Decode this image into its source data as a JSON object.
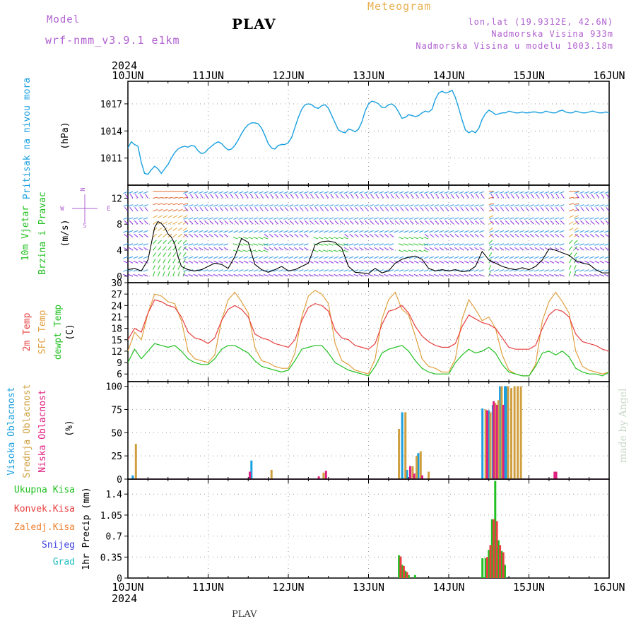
{
  "header": {
    "model_label": "Model",
    "model_name": "wrf-nmm_v3.9.1 e1km",
    "station": "PLAV",
    "product": "Meteogram",
    "lonlat": "lon,lat (19.9312E, 42.6N)",
    "elevation": "Nadmorska Visina 933m",
    "model_elevation": "Nadmorska Visina u modelu 1003.18m"
  },
  "time_axis": {
    "year": "2024",
    "day_labels": [
      "10JUN",
      "11JUN",
      "12JUN",
      "13JUN",
      "14JUN",
      "15JUN",
      "16JUN"
    ]
  },
  "footer": {
    "station": "PLAV",
    "credit": "made by Angel"
  },
  "colors": {
    "pressure": "#1aa0e0",
    "wind_green": "#20c020",
    "wind_purple": "#8020e0",
    "temp2m": "#e84040",
    "sfc_temp": "#e0a040",
    "dewpt": "#20c020",
    "high_cloud": "#1aa0e0",
    "mid_cloud": "#d0a040",
    "low_cloud": "#e02080",
    "total_precip": "#20c020",
    "conv_precip": "#e84040",
    "frozen": "#f08030",
    "snow": "#4040e0",
    "hail": "#20c0c0"
  },
  "chart_data": [
    {
      "type": "line",
      "panel": "pressure",
      "ylabel_1": "Pritisak na nivou mora",
      "ylabel_2": "(hPa)",
      "ylim": [
        1008,
        1019.5
      ],
      "yticks": [
        "1011",
        "1014",
        "1017"
      ],
      "grid": true,
      "x_days": [
        0,
        0.042,
        0.083,
        0.125,
        0.167,
        0.208,
        0.25,
        0.292,
        0.333,
        0.375,
        0.417,
        0.458,
        0.5,
        0.542,
        0.583,
        0.625,
        0.667,
        0.708,
        0.75,
        0.792,
        0.833,
        0.875,
        0.917,
        0.958,
        1.0,
        1.042,
        1.083,
        1.125,
        1.167,
        1.208,
        1.25,
        1.292,
        1.333,
        1.375,
        1.417,
        1.458,
        1.5,
        1.542,
        1.583,
        1.625,
        1.667,
        1.708,
        1.75,
        1.792,
        1.833,
        1.875,
        1.917,
        1.958,
        2.0,
        2.042,
        2.083,
        2.125,
        2.167,
        2.208,
        2.25,
        2.292,
        2.333,
        2.375,
        2.417,
        2.458,
        2.5,
        2.542,
        2.583,
        2.625,
        2.667,
        2.708,
        2.75,
        2.792,
        2.833,
        2.875,
        2.917,
        2.958,
        3.0,
        3.042,
        3.083,
        3.125,
        3.167,
        3.208,
        3.25,
        3.292,
        3.333,
        3.375,
        3.417,
        3.458,
        3.5,
        3.542,
        3.583,
        3.625,
        3.667,
        3.708,
        3.75,
        3.792,
        3.833,
        3.875,
        3.917,
        3.958,
        4.0,
        4.042,
        4.083,
        4.125,
        4.167,
        4.208,
        4.25,
        4.292,
        4.333,
        4.375,
        4.417,
        4.458,
        4.5,
        4.542,
        4.583,
        4.625,
        4.667,
        4.708,
        4.75,
        4.792,
        4.833,
        4.875,
        4.917,
        4.958,
        5.0,
        5.042,
        5.083,
        5.125,
        5.167,
        5.208,
        5.25,
        5.292,
        5.333,
        5.375,
        5.417,
        5.458,
        5.5,
        5.542,
        5.583,
        5.625,
        5.667,
        5.708,
        5.75,
        5.792,
        5.833,
        5.875,
        5.917,
        5.958,
        6.0
      ],
      "series": [
        {
          "values": [
            1012.1,
            1012.8,
            1012.5,
            1012.3,
            1010.5,
            1009.3,
            1009.2,
            1009.7,
            1010.1,
            1009.8,
            1009.3,
            1009.8,
            1010.3,
            1011.0,
            1011.6,
            1012.0,
            1012.2,
            1012.3,
            1012.2,
            1012.4,
            1012.3,
            1011.8,
            1011.5,
            1011.6,
            1012.0,
            1012.3,
            1012.6,
            1012.8,
            1012.6,
            1012.2,
            1011.9,
            1012.0,
            1012.4,
            1013.0,
            1013.7,
            1014.3,
            1014.7,
            1014.9,
            1014.9,
            1014.8,
            1014.3,
            1013.5,
            1012.6,
            1012.1,
            1012.0,
            1012.4,
            1012.5,
            1012.5,
            1012.7,
            1013.3,
            1014.4,
            1015.5,
            1016.4,
            1016.9,
            1017.0,
            1016.9,
            1016.6,
            1016.5,
            1016.8,
            1016.9,
            1016.5,
            1015.7,
            1014.9,
            1014.1,
            1013.9,
            1013.8,
            1014.2,
            1014.1,
            1013.9,
            1014.2,
            1015.0,
            1016.2,
            1017.0,
            1017.3,
            1017.2,
            1017.0,
            1016.6,
            1016.6,
            1016.9,
            1017.0,
            1016.7,
            1016.1,
            1015.4,
            1015.5,
            1015.8,
            1015.7,
            1015.6,
            1015.7,
            1016.0,
            1016.2,
            1016.1,
            1016.4,
            1017.5,
            1018.2,
            1018.4,
            1018.2,
            1018.3,
            1018.5,
            1017.7,
            1016.5,
            1015.2,
            1014.1,
            1013.8,
            1014.0,
            1013.8,
            1014.3,
            1015.3,
            1015.9,
            1016.3,
            1016.1,
            1015.8,
            1015.9,
            1016.0,
            1016.0,
            1016.2,
            1016.1,
            1016.0,
            1016.0,
            1016.1,
            1016.0,
            1016.0,
            1016.1,
            1016.1,
            1016.0,
            1016.0,
            1016.2,
            1016.1,
            1016.0,
            1016.0,
            1016.2,
            1016.3,
            1016.1,
            1016.0,
            1016.0,
            1016.2,
            1016.1,
            1016.0,
            1016.0,
            1016.1,
            1016.2,
            1016.1,
            1016.0,
            1016.0,
            1016.1,
            1016.0
          ]
        }
      ]
    },
    {
      "type": "line",
      "panel": "wind",
      "ylabel_1": "10m Vjetar",
      "ylabel_2": "Brzina i Pravac",
      "ylabel_3": "(m/s)",
      "compass": {
        "n": "N",
        "e": "E",
        "w": "W",
        "s": "S"
      },
      "ylim": [
        -1,
        14
      ],
      "yticks": [
        "0",
        "4",
        "8",
        "12"
      ],
      "grid": true,
      "x_days": [
        0,
        0.083,
        0.167,
        0.25,
        0.333,
        0.375,
        0.417,
        0.458,
        0.5,
        0.542,
        0.583,
        0.625,
        0.667,
        0.75,
        0.833,
        0.917,
        1.0,
        1.083,
        1.167,
        1.25,
        1.333,
        1.417,
        1.5,
        1.583,
        1.667,
        1.75,
        1.833,
        1.917,
        2.0,
        2.083,
        2.167,
        2.25,
        2.333,
        2.417,
        2.5,
        2.583,
        2.667,
        2.75,
        2.833,
        2.917,
        3.0,
        3.083,
        3.167,
        3.25,
        3.333,
        3.417,
        3.5,
        3.583,
        3.667,
        3.75,
        3.833,
        3.917,
        4.0,
        4.083,
        4.167,
        4.25,
        4.333,
        4.417,
        4.5,
        4.583,
        4.667,
        4.75,
        4.833,
        4.917,
        5.0,
        5.083,
        5.167,
        5.25,
        5.333,
        5.417,
        5.5,
        5.583,
        5.667,
        5.75,
        5.833,
        5.917,
        6.0
      ],
      "series": [
        {
          "name": "wind speed",
          "values": [
            1.0,
            1.2,
            0.8,
            2.5,
            7.5,
            8.4,
            8.1,
            7.5,
            6.5,
            6.0,
            5.0,
            3.0,
            1.5,
            1.0,
            0.8,
            1.0,
            1.5,
            2.0,
            1.8,
            1.2,
            3.0,
            5.8,
            5.2,
            1.8,
            1.0,
            0.6,
            1.0,
            1.5,
            0.8,
            1.0,
            1.5,
            2.0,
            4.8,
            5.3,
            5.4,
            5.2,
            4.3,
            1.5,
            0.6,
            0.5,
            0.4,
            1.2,
            0.5,
            0.8,
            2.0,
            2.6,
            2.9,
            3.1,
            2.6,
            1.2,
            0.8,
            1.0,
            0.8,
            1.0,
            0.7,
            0.8,
            1.5,
            3.8,
            2.5,
            2.0,
            1.5,
            1.2,
            1.0,
            1.3,
            1.0,
            1.5,
            2.5,
            4.2,
            4.0,
            3.6,
            3.2,
            2.4,
            2.0,
            1.8,
            1.0,
            0.5,
            0.5
          ]
        }
      ]
    },
    {
      "type": "line",
      "panel": "temperature",
      "ylabel_1": "2m Temp",
      "ylabel_2": "SFC Temp",
      "ylabel_3": "dewpt Temp",
      "ylabel_4": "(C)",
      "ylim": [
        4,
        30
      ],
      "yticks": [
        "6",
        "9",
        "12",
        "15",
        "18",
        "21",
        "24",
        "27",
        "30"
      ],
      "grid": true,
      "x_days": [
        0,
        0.083,
        0.167,
        0.25,
        0.333,
        0.417,
        0.5,
        0.583,
        0.667,
        0.75,
        0.833,
        0.917,
        1.0,
        1.083,
        1.167,
        1.25,
        1.333,
        1.417,
        1.5,
        1.583,
        1.667,
        1.75,
        1.833,
        1.917,
        2.0,
        2.083,
        2.167,
        2.25,
        2.333,
        2.417,
        2.5,
        2.583,
        2.667,
        2.75,
        2.833,
        2.917,
        3.0,
        3.083,
        3.167,
        3.25,
        3.333,
        3.417,
        3.5,
        3.583,
        3.667,
        3.75,
        3.833,
        3.917,
        4.0,
        4.083,
        4.167,
        4.25,
        4.333,
        4.417,
        4.5,
        4.583,
        4.667,
        4.75,
        4.833,
        4.917,
        5.0,
        5.083,
        5.167,
        5.25,
        5.333,
        5.417,
        5.5,
        5.583,
        5.667,
        5.75,
        5.833,
        5.917,
        6.0
      ],
      "series": [
        {
          "name": "2m Temp",
          "values": [
            15.0,
            18.0,
            17.0,
            22.0,
            25.5,
            25.0,
            24.0,
            23.5,
            21.0,
            17.0,
            15.5,
            15.0,
            14.0,
            15.5,
            20.0,
            23.0,
            24.0,
            23.0,
            21.0,
            16.5,
            15.5,
            15.0,
            14.0,
            13.5,
            13.0,
            15.0,
            20.0,
            23.5,
            24.5,
            24.0,
            22.5,
            17.5,
            15.5,
            15.0,
            13.5,
            13.0,
            12.5,
            14.0,
            19.0,
            22.5,
            23.0,
            24.0,
            22.0,
            18.5,
            16.0,
            14.5,
            13.5,
            13.0,
            13.0,
            14.0,
            18.5,
            21.5,
            20.5,
            19.5,
            19.0,
            18.0,
            15.5,
            13.0,
            12.5,
            12.5,
            12.5,
            13.5,
            18.0,
            21.5,
            23.0,
            22.5,
            21.0,
            16.5,
            14.5,
            14.0,
            13.5,
            12.5,
            12.0
          ]
        },
        {
          "name": "SFC Temp",
          "values": [
            12.0,
            17.0,
            15.0,
            22.0,
            27.0,
            26.5,
            25.0,
            24.5,
            20.0,
            12.0,
            10.0,
            9.5,
            9.0,
            11.0,
            20.0,
            25.5,
            27.5,
            25.0,
            22.0,
            13.0,
            9.5,
            9.0,
            8.0,
            7.5,
            7.5,
            11.5,
            21.0,
            26.5,
            28.0,
            27.0,
            24.5,
            14.0,
            9.5,
            8.5,
            7.0,
            6.5,
            6.0,
            10.0,
            20.5,
            25.5,
            27.5,
            23.0,
            21.5,
            16.0,
            10.0,
            8.0,
            7.5,
            6.5,
            6.5,
            10.0,
            20.5,
            25.5,
            23.0,
            20.0,
            21.0,
            18.0,
            11.0,
            7.0,
            6.0,
            5.5,
            5.5,
            8.5,
            20.0,
            25.0,
            27.5,
            25.0,
            22.0,
            12.0,
            8.0,
            7.0,
            6.5,
            6.0,
            6.5
          ]
        },
        {
          "name": "dewpt Temp",
          "values": [
            9.0,
            12.5,
            10.0,
            12.0,
            14.0,
            13.5,
            13.0,
            13.5,
            12.0,
            10.0,
            9.0,
            8.5,
            8.5,
            10.0,
            12.5,
            13.5,
            13.5,
            12.5,
            11.5,
            9.5,
            8.0,
            7.5,
            7.0,
            6.5,
            7.0,
            9.5,
            12.5,
            13.0,
            13.5,
            13.5,
            11.5,
            9.0,
            8.0,
            7.0,
            6.5,
            6.0,
            5.5,
            8.0,
            11.5,
            12.5,
            13.0,
            13.5,
            12.0,
            9.5,
            7.5,
            6.5,
            6.0,
            6.0,
            6.0,
            9.0,
            11.0,
            12.5,
            11.5,
            12.0,
            13.0,
            11.5,
            8.5,
            6.5,
            6.0,
            5.5,
            5.5,
            8.0,
            11.5,
            12.0,
            11.0,
            12.0,
            10.5,
            7.5,
            6.5,
            6.0,
            6.0,
            5.5,
            6.5
          ]
        }
      ]
    },
    {
      "type": "bar",
      "panel": "cloud",
      "ylabel_1": "Visoka Oblacnost",
      "ylabel_2": "Srednja Oblacnost",
      "ylabel_3": "Niska Oblacnost",
      "ylabel_4": "(%)",
      "ylim": [
        0,
        105
      ],
      "yticks": [
        "0",
        "25",
        "50",
        "75",
        "100"
      ],
      "grid": true,
      "series": [
        {
          "name": "Visoka Oblacnost",
          "x": [
            0.06,
            1.54,
            3.42,
            3.48,
            3.62,
            4.42,
            4.5,
            4.55,
            4.64,
            4.7,
            4.72
          ],
          "values": [
            4,
            20,
            72,
            10,
            28,
            76,
            74,
            80,
            100,
            100,
            100
          ]
        },
        {
          "name": "Srednja Oblacnost",
          "x": [
            0.1,
            1.79,
            2.44,
            3.38,
            3.46,
            3.55,
            3.6,
            3.65,
            3.75,
            4.46,
            4.52,
            4.58,
            4.62,
            4.66,
            4.74,
            4.78,
            4.82,
            4.86,
            4.9
          ],
          "values": [
            38,
            10,
            7,
            54,
            72,
            14,
            25,
            30,
            8,
            75,
            72,
            82,
            85,
            100,
            100,
            98,
            100,
            100,
            100
          ]
        },
        {
          "name": "Niska Oblacnost",
          "x": [
            1.52,
            2.38,
            2.47,
            3.52,
            3.57,
            3.67,
            4.48,
            4.56,
            4.6,
            4.68,
            5.32,
            5.34
          ],
          "values": [
            8,
            3,
            9,
            14,
            6,
            4,
            74,
            84,
            80,
            80,
            8,
            8
          ]
        }
      ]
    },
    {
      "type": "bar",
      "panel": "precip",
      "ylabel_1": "1hr Precip (mm)",
      "legend": [
        "Ukupna Kisa",
        "Konvek.Kisa",
        "Zaledj.Kisa",
        "Snijeg",
        "Grad"
      ],
      "ylim": [
        0,
        1.65
      ],
      "yticks": [
        "0",
        "0.35",
        "0.7",
        "1.05",
        "1.4"
      ],
      "grid": true,
      "series": [
        {
          "name": "Ukupna Kisa",
          "x": [
            3.38,
            3.42,
            3.46,
            3.5,
            3.58,
            4.42,
            4.46,
            4.5,
            4.54,
            4.58,
            4.62,
            4.66,
            4.7,
            4.74
          ],
          "values": [
            0.38,
            0.22,
            0.12,
            0.05,
            0.05,
            0.33,
            0.33,
            0.47,
            0.98,
            1.62,
            0.63,
            0.45,
            0.22,
            0.0
          ]
        },
        {
          "name": "Konvek.Kisa",
          "x": [
            3.4,
            3.44,
            3.48,
            4.48,
            4.52,
            4.56,
            4.6,
            4.64,
            4.68
          ],
          "values": [
            0.36,
            0.2,
            0.1,
            0.35,
            0.55,
            0.98,
            0.95,
            0.55,
            0.43
          ]
        }
      ]
    }
  ]
}
